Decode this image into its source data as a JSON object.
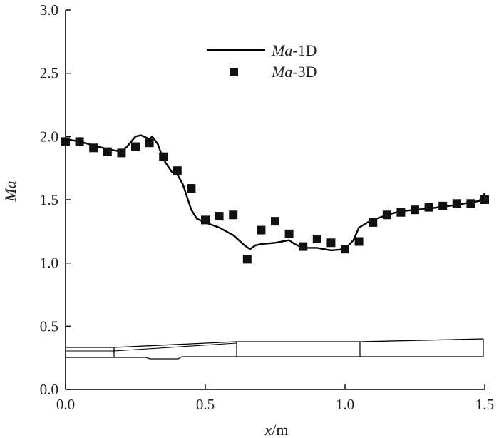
{
  "chart_data": {
    "type": "line",
    "xlabel_italic": "x",
    "xlabel_unit": "/m",
    "ylabel": "Ma",
    "xlim": [
      0,
      1.5
    ],
    "ylim": [
      0,
      3.0
    ],
    "x_ticks": [
      "0.0",
      "0.5",
      "1.0",
      "1.5"
    ],
    "y_ticks": [
      "0.0",
      "0.5",
      "1.0",
      "1.5",
      "2.0",
      "2.5",
      "3.0"
    ],
    "legend_position": "top-center",
    "grid": false,
    "series": [
      {
        "name_italic": "Ma",
        "name_suffix": "-1D",
        "style": "line",
        "x": [
          0.0,
          0.05,
          0.1,
          0.15,
          0.2,
          0.22,
          0.25,
          0.27,
          0.3,
          0.31,
          0.33,
          0.35,
          0.38,
          0.4,
          0.42,
          0.45,
          0.47,
          0.5,
          0.55,
          0.6,
          0.64,
          0.66,
          0.68,
          0.7,
          0.75,
          0.8,
          0.82,
          0.85,
          0.9,
          0.95,
          1.0,
          1.03,
          1.05,
          1.08,
          1.1,
          1.15,
          1.2,
          1.3,
          1.4,
          1.48,
          1.5
        ],
        "y": [
          1.98,
          1.96,
          1.93,
          1.9,
          1.88,
          1.92,
          2.0,
          2.01,
          1.98,
          2.0,
          1.94,
          1.82,
          1.72,
          1.7,
          1.62,
          1.42,
          1.35,
          1.32,
          1.28,
          1.22,
          1.14,
          1.11,
          1.14,
          1.15,
          1.16,
          1.18,
          1.15,
          1.12,
          1.12,
          1.1,
          1.11,
          1.18,
          1.28,
          1.32,
          1.34,
          1.38,
          1.41,
          1.43,
          1.46,
          1.49,
          1.55
        ]
      },
      {
        "name_italic": "Ma",
        "name_suffix": "-3D",
        "style": "square-markers",
        "x": [
          0.0,
          0.05,
          0.1,
          0.15,
          0.2,
          0.25,
          0.3,
          0.35,
          0.4,
          0.45,
          0.5,
          0.55,
          0.6,
          0.65,
          0.7,
          0.75,
          0.8,
          0.85,
          0.9,
          0.95,
          1.0,
          1.05,
          1.1,
          1.15,
          1.2,
          1.25,
          1.3,
          1.35,
          1.4,
          1.45,
          1.5
        ],
        "y": [
          1.96,
          1.96,
          1.91,
          1.88,
          1.87,
          1.92,
          1.95,
          1.84,
          1.73,
          1.59,
          1.34,
          1.37,
          1.38,
          1.03,
          1.26,
          1.33,
          1.23,
          1.13,
          1.19,
          1.16,
          1.11,
          1.17,
          1.32,
          1.38,
          1.4,
          1.42,
          1.44,
          1.45,
          1.47,
          1.47,
          1.5
        ]
      }
    ]
  },
  "colors": {
    "line": "#000000",
    "marker": "#111111",
    "axis": "#000000",
    "background": "#ffffff"
  }
}
